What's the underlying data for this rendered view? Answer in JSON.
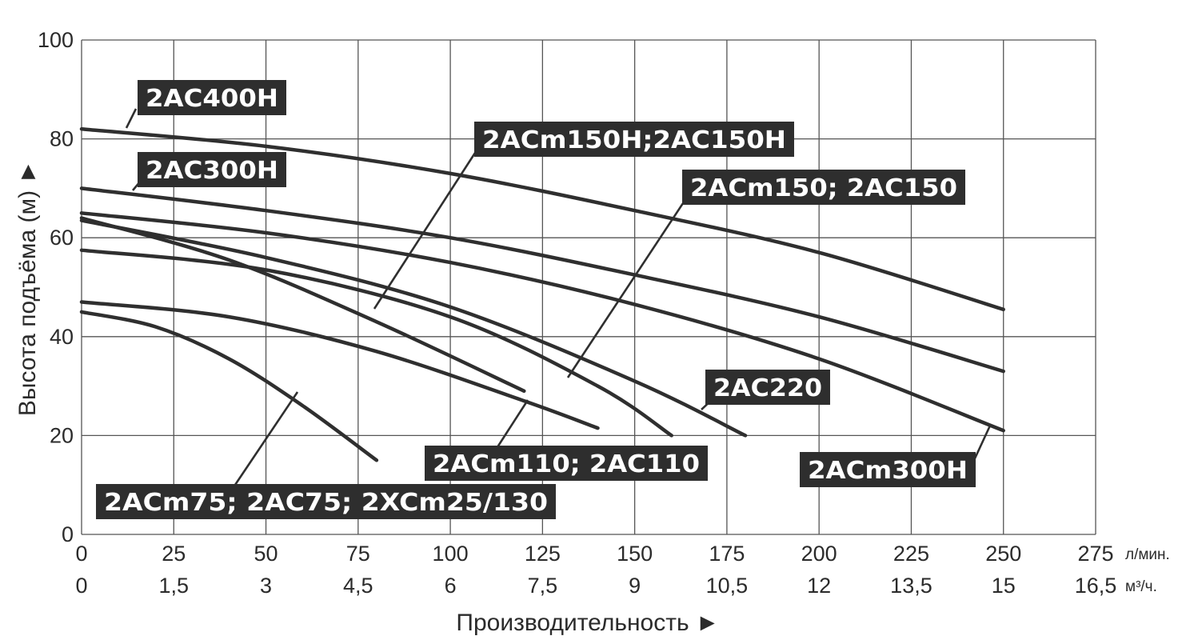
{
  "chart_data": {
    "type": "line",
    "ylabel": "Высота подъёма (м) ►",
    "xlabel": "Производительность ►",
    "ylim": [
      0,
      100
    ],
    "xlim": [
      0,
      275
    ],
    "grid": true,
    "y_ticks": [
      "0",
      "20",
      "40",
      "60",
      "80",
      "100"
    ],
    "x_ticks_lmin": [
      "0",
      "25",
      "50",
      "75",
      "100",
      "125",
      "150",
      "175",
      "200",
      "225",
      "250",
      "275"
    ],
    "x_unit_lmin": "л/мин.",
    "x_ticks_m3h": [
      "0",
      "1,5",
      "3",
      "4,5",
      "6",
      "7,5",
      "9",
      "10,5",
      "12",
      "13,5",
      "15",
      "16,5"
    ],
    "x_unit_m3h": "м³/ч.",
    "series": [
      {
        "name": "2AC400H",
        "x": [
          0,
          50,
          100,
          150,
          200,
          250
        ],
        "y": [
          82,
          78.5,
          73,
          65.5,
          57,
          45.5
        ]
      },
      {
        "name": "2AC300H",
        "x": [
          0,
          50,
          100,
          150,
          200,
          250
        ],
        "y": [
          70,
          65.5,
          60,
          52.5,
          44,
          33
        ]
      },
      {
        "name": "2ACm300H",
        "x": [
          0,
          50,
          100,
          150,
          200,
          250
        ],
        "y": [
          65,
          61,
          55,
          46.5,
          35.5,
          21
        ]
      },
      {
        "name": "2AC220",
        "x": [
          0,
          50,
          100,
          150,
          180
        ],
        "y": [
          63.5,
          56,
          46,
          31,
          20
        ]
      },
      {
        "name": "2ACm150; 2AC150",
        "x": [
          0,
          50,
          100,
          140,
          160
        ],
        "y": [
          57.5,
          53.5,
          44,
          30,
          20
        ]
      },
      {
        "name": "2ACm150H;2AC150H",
        "x": [
          0,
          40,
          80,
          120
        ],
        "y": [
          64,
          55.5,
          43,
          29
        ]
      },
      {
        "name": "2ACm110; 2AC110",
        "x": [
          0,
          40,
          80,
          120,
          140
        ],
        "y": [
          47,
          44,
          37,
          27,
          21.5
        ]
      },
      {
        "name": "2ACm75; 2AC75; 2XCm25/130",
        "x": [
          0,
          20,
          40,
          60,
          80
        ],
        "y": [
          45,
          42,
          35.5,
          26,
          15
        ]
      }
    ],
    "labels": [
      {
        "text": "2AC400H",
        "series": "2AC400H"
      },
      {
        "text": "2AC300H",
        "series": "2AC300H"
      },
      {
        "text": "2ACm150H;2AC150H",
        "series": "2ACm150H;2AC150H"
      },
      {
        "text": "2ACm150; 2AC150",
        "series": "2ACm150; 2AC150"
      },
      {
        "text": "2AC220",
        "series": "2AC220"
      },
      {
        "text": "2ACm300H",
        "series": "2ACm300H"
      },
      {
        "text": "2ACm110; 2AC110",
        "series": "2ACm110; 2AC110"
      },
      {
        "text": "2ACm75; 2AC75; 2XCm25/130",
        "series": "2ACm75; 2AC75; 2XCm25/130"
      }
    ],
    "colors": {
      "line": "#2f2f2f",
      "label_bg": "#2e2e2e",
      "label_text": "#ffffff",
      "grid": "#555555"
    }
  }
}
